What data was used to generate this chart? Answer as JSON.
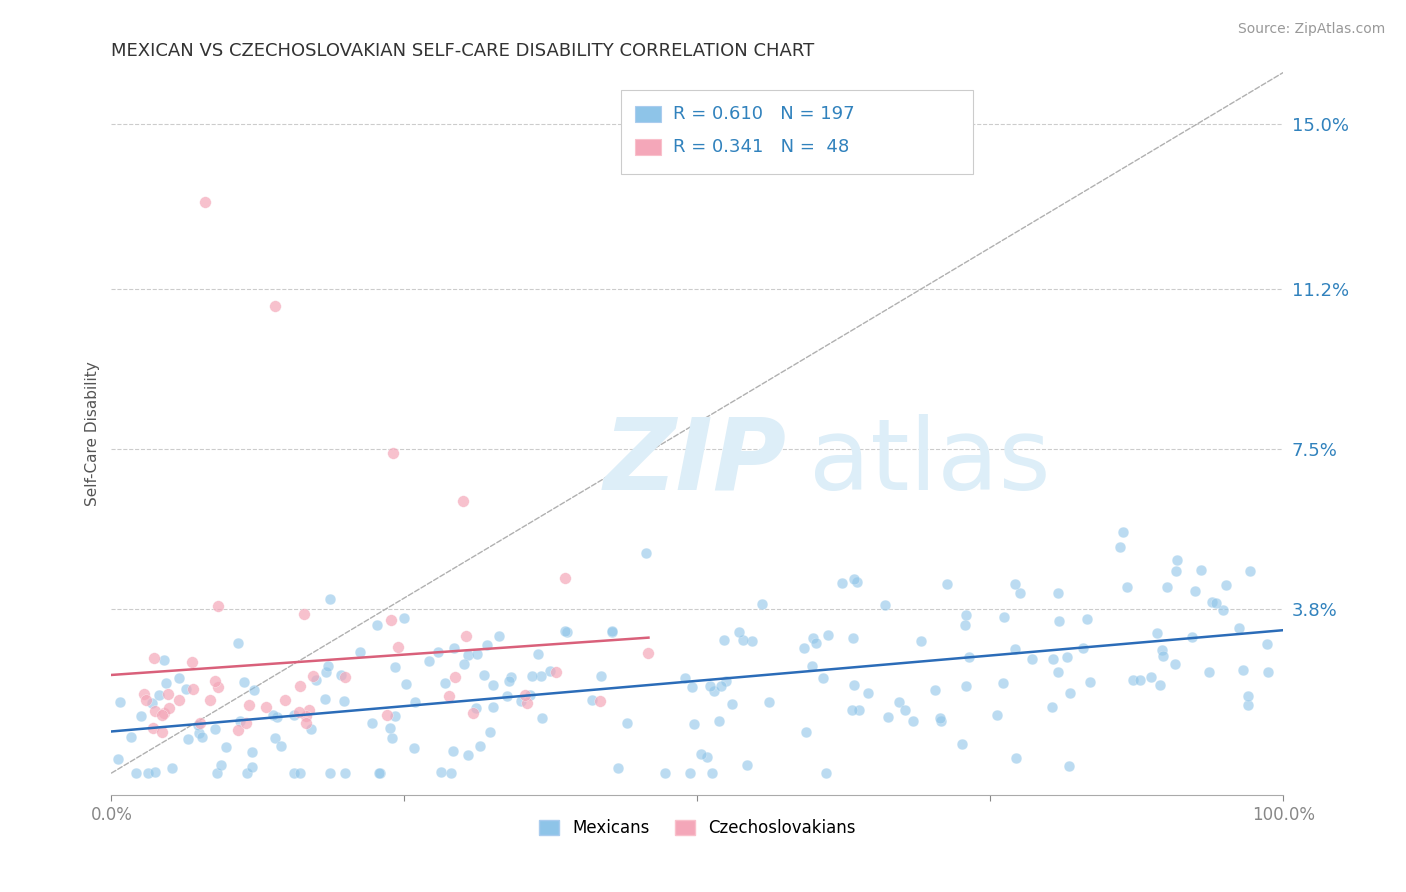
{
  "title": "MEXICAN VS CZECHOSLOVAKIAN SELF-CARE DISABILITY CORRELATION CHART",
  "source": "Source: ZipAtlas.com",
  "ylabel": "Self-Care Disability",
  "xlim": [
    0,
    1
  ],
  "ylim": [
    -0.005,
    0.162
  ],
  "yticks": [
    0.038,
    0.075,
    0.112,
    0.15
  ],
  "ytick_labels": [
    "3.8%",
    "7.5%",
    "11.2%",
    "15.0%"
  ],
  "xticks": [
    0.0,
    0.25,
    0.5,
    0.75,
    1.0
  ],
  "xtick_labels": [
    "0.0%",
    "",
    "",
    "",
    "100.0%"
  ],
  "blue_R": 0.61,
  "blue_N": 197,
  "pink_R": 0.341,
  "pink_N": 48,
  "blue_color": "#8ec4e8",
  "blue_line_color": "#2b6cb8",
  "pink_color": "#f4a7b9",
  "pink_line_color": "#d9607a",
  "legend_label_blue": "Mexicans",
  "legend_label_pink": "Czechoslovakians",
  "blue_seed": 42,
  "pink_seed": 99,
  "title_fontsize": 13,
  "stat_color": "#3182bd",
  "tick_label_color": "#3182bd",
  "background_color": "#ffffff",
  "grid_color": "#cccccc",
  "diag_color": "#b0b0b0",
  "watermark_zip": "ZIP",
  "watermark_atlas": "atlas",
  "watermark_color": "#ddeef8"
}
